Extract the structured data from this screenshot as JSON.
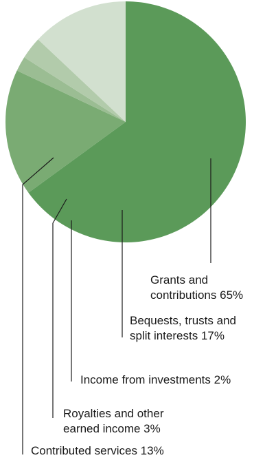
{
  "chart_data": {
    "type": "pie",
    "title": "",
    "slices": [
      {
        "id": "grants",
        "label_lines": [
          "Grants and",
          "contributions 65%"
        ],
        "value": 65,
        "color": "#5b9a59"
      },
      {
        "id": "bequests",
        "label_lines": [
          "Bequests, trusts and",
          "split interests 17%"
        ],
        "value": 17,
        "color": "#7aab73"
      },
      {
        "id": "investments",
        "label_lines": [
          "Income from investments 2%"
        ],
        "value": 2,
        "color": "#9bbd93"
      },
      {
        "id": "royalties",
        "label_lines": [
          "Royalties and other",
          "earned income 3%"
        ],
        "value": 3,
        "color": "#b2cbab"
      },
      {
        "id": "contributed",
        "label_lines": [
          "Contributed services 13%"
        ],
        "value": 13,
        "color": "#d2e0cf"
      }
    ]
  }
}
